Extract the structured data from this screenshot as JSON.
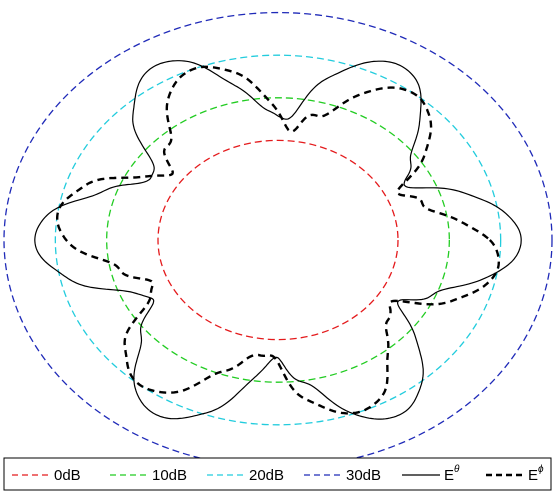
{
  "chart_data": {
    "type": "line",
    "plot": "polar",
    "title": "",
    "grid": false,
    "legend_position": "bottom",
    "reference_circles": [
      {
        "label": "0dB",
        "level_db": 0,
        "color": "#e41a1c",
        "dash": "dashed"
      },
      {
        "label": "10dB",
        "level_db": 10,
        "color": "#22cc22",
        "dash": "dashed"
      },
      {
        "label": "20dB",
        "level_db": 20,
        "color": "#22ccdd",
        "dash": "dashed"
      },
      {
        "label": "30dB",
        "level_db": 30,
        "color": "#1f2ab8",
        "dash": "dashed"
      }
    ],
    "series": [
      {
        "name": "E",
        "superscript": "θ",
        "color": "#000000",
        "dash": "solid",
        "lobes": 6,
        "lobe_phase_deg": 0,
        "peak_db": 24,
        "null_db": 5,
        "ripple_db": 1.2
      },
      {
        "name": "E",
        "superscript": "ϕ",
        "color": "#000000",
        "dash": "dashed",
        "lobes": 6,
        "lobe_phase_deg": 8,
        "peak_db": 20,
        "null_db": 3,
        "ripple_db": 1.5
      }
    ]
  }
}
